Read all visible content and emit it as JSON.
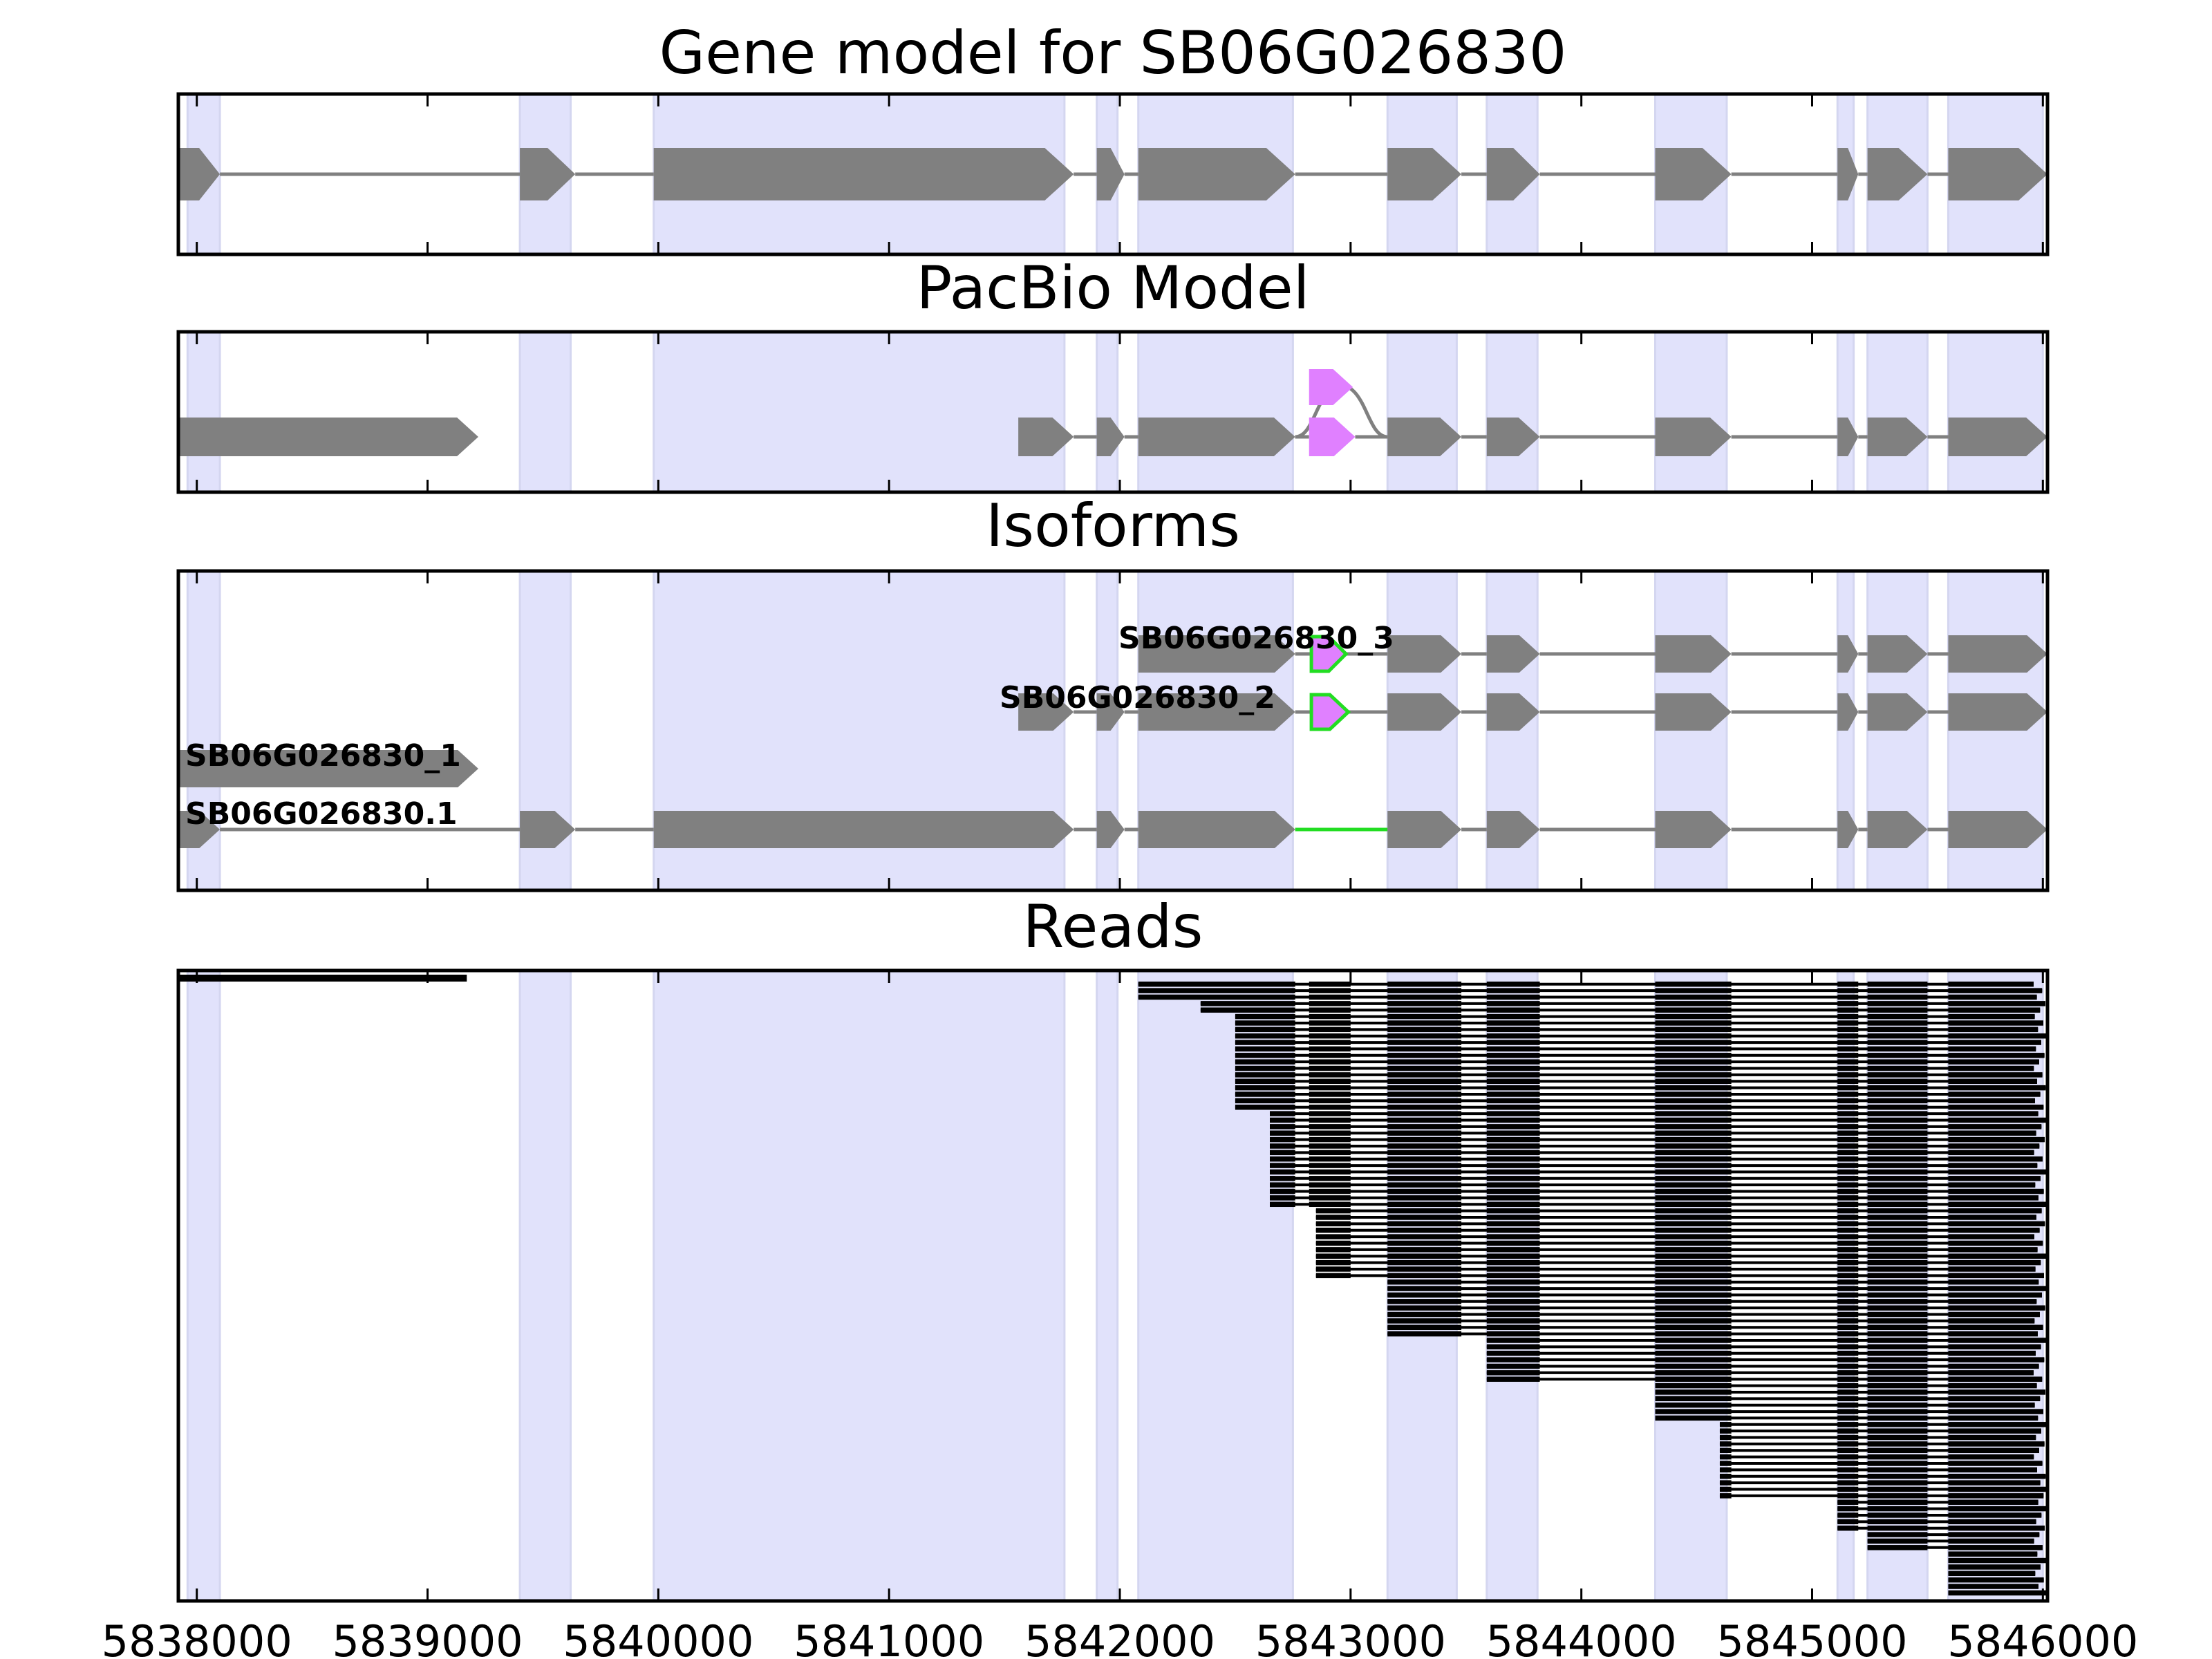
{
  "figure": {
    "titles": [
      "Gene model for SB06G026830",
      "PacBio Model",
      "Isoforms",
      "Reads"
    ]
  },
  "chart_data": {
    "type": "gene-track",
    "xlim": [
      5837920,
      5846020
    ],
    "x_ticks": [
      5838000,
      5839000,
      5840000,
      5841000,
      5842000,
      5843000,
      5844000,
      5845000,
      5846000
    ],
    "x_tick_labels": [
      "5838000",
      "5839000",
      "5840000",
      "5841000",
      "5842000",
      "5843000",
      "5844000",
      "5845000",
      "5846000"
    ],
    "grid": false,
    "colors": {
      "exon_shade": "#e1e2fb",
      "exon": "#808080",
      "intron": "#808080",
      "pacbio_alt": "#e080ff",
      "alt_edge": "#22dd22",
      "read": "#000000"
    },
    "shaded_exons": [
      [
        5837960,
        5838100
      ],
      [
        5839400,
        5839620
      ],
      [
        5839980,
        5841760
      ],
      [
        5841900,
        5841990
      ],
      [
        5842080,
        5842750
      ],
      [
        5843160,
        5843460
      ],
      [
        5843590,
        5843810
      ],
      [
        5844320,
        5844630
      ],
      [
        5845110,
        5845180
      ],
      [
        5845240,
        5845500
      ],
      [
        5845590,
        5846000
      ]
    ],
    "gene_model": {
      "title": "Gene model for SB06G026830",
      "exons": [
        [
          5837920,
          5838100
        ],
        [
          5839400,
          5839640
        ],
        [
          5839980,
          5841800
        ],
        [
          5841900,
          5842020
        ],
        [
          5842080,
          5842760
        ],
        [
          5843160,
          5843480
        ],
        [
          5843590,
          5843820
        ],
        [
          5844320,
          5844650
        ],
        [
          5845110,
          5845200
        ],
        [
          5845240,
          5845500
        ],
        [
          5845590,
          5846020
        ]
      ]
    },
    "pacbio_model": {
      "title": "PacBio Model",
      "exons": [
        [
          5837920,
          5839220
        ],
        [
          5841560,
          5841800
        ],
        [
          5841900,
          5842020
        ],
        [
          5842080,
          5842760
        ],
        [
          5843160,
          5843480
        ],
        [
          5843590,
          5843820
        ],
        [
          5844320,
          5844650
        ],
        [
          5845110,
          5845200
        ],
        [
          5845240,
          5845500
        ],
        [
          5845590,
          5846020
        ]
      ],
      "alt_exon": [
        5842820,
        5843020
      ],
      "splits": [
        [
          5837920,
          5839220
        ]
      ]
    },
    "isoforms": {
      "title": "Isoforms",
      "tracks": [
        {
          "label": "SB06G026830_3",
          "exons": [
            [
              5842080,
              5842760
            ],
            [
              5843160,
              5843480
            ],
            [
              5843590,
              5843820
            ],
            [
              5844320,
              5844650
            ],
            [
              5845110,
              5845200
            ],
            [
              5845240,
              5845500
            ],
            [
              5845590,
              5846020
            ]
          ],
          "alt_exon": [
            5842830,
            5842980
          ]
        },
        {
          "label": "SB06G026830_2",
          "exons": [
            [
              5841560,
              5841800
            ],
            [
              5841900,
              5842020
            ],
            [
              5842080,
              5842760
            ],
            [
              5843160,
              5843480
            ],
            [
              5843590,
              5843820
            ],
            [
              5844320,
              5844650
            ],
            [
              5845110,
              5845200
            ],
            [
              5845240,
              5845500
            ],
            [
              5845590,
              5846020
            ]
          ],
          "alt_exon": [
            5842830,
            5842990
          ]
        },
        {
          "label": "SB06G026830_1",
          "exons": [
            [
              5837920,
              5839220
            ]
          ]
        },
        {
          "label": "SB06G026830.1",
          "exons": [
            [
              5837920,
              5838100
            ],
            [
              5839400,
              5839640
            ],
            [
              5839980,
              5841800
            ],
            [
              5841900,
              5842020
            ],
            [
              5842080,
              5842760
            ],
            [
              5843160,
              5843480
            ],
            [
              5843590,
              5843820
            ],
            [
              5844320,
              5844650
            ],
            [
              5845110,
              5845200
            ],
            [
              5845240,
              5845500
            ],
            [
              5845590,
              5846020
            ]
          ],
          "skipped_intron": [
            5842760,
            5843160
          ]
        }
      ]
    },
    "reads": {
      "title": "Reads",
      "count": 95
    }
  }
}
